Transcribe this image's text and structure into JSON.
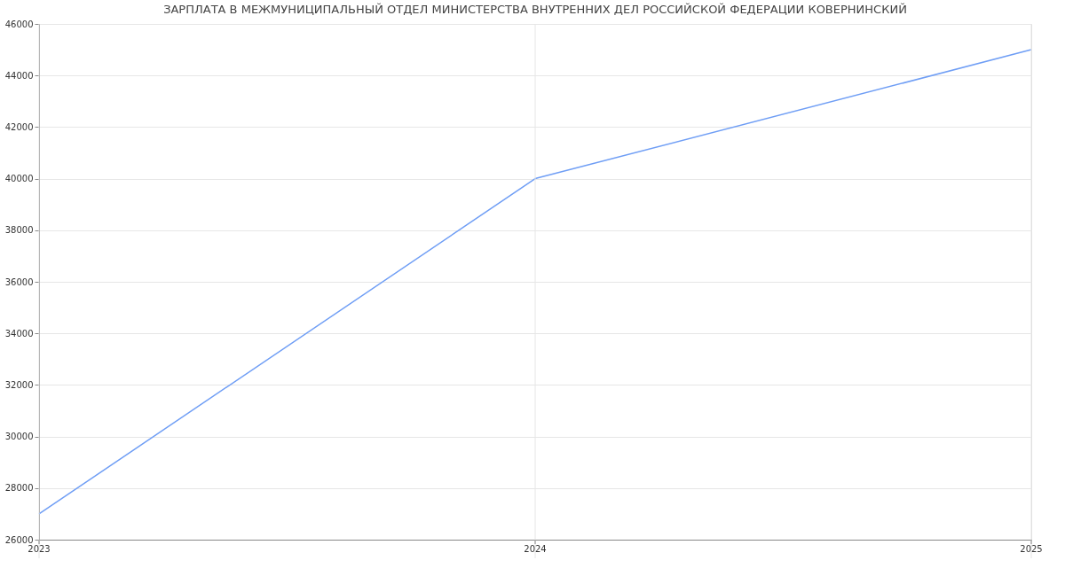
{
  "chart_data": {
    "type": "line",
    "title": "ЗАРПЛАТА В МЕЖМУНИЦИПАЛЬНЫЙ ОТДЕЛ МИНИСТЕРСТВА ВНУТРЕННИХ ДЕЛ РОССИЙСКОЙ ФЕДЕРАЦИИ КОВЕРНИНСКИЙ",
    "x": [
      2023,
      2024,
      2025
    ],
    "series": [
      {
        "color": "#6f9ef5",
        "values": [
          27000,
          40000,
          45000
        ]
      }
    ],
    "xlim": [
      2023,
      2025
    ],
    "xticks": [
      2023,
      2024,
      2025
    ],
    "ylim": [
      26000,
      46000
    ],
    "yticks": [
      26000,
      28000,
      30000,
      32000,
      34000,
      36000,
      38000,
      40000,
      42000,
      44000,
      46000
    ],
    "grid": true,
    "marker": "none",
    "line_style": "solid"
  }
}
